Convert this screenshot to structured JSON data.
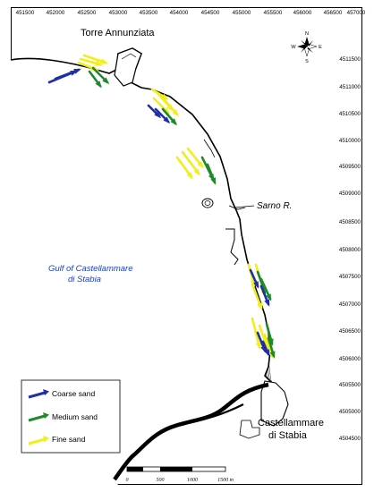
{
  "map": {
    "x_ticks": [
      "451500",
      "452000",
      "452500",
      "453000",
      "453500",
      "454000",
      "454500",
      "455000",
      "455500",
      "456000",
      "456500",
      "457000"
    ],
    "y_ticks": [
      "4511500",
      "4511000",
      "4510500",
      "4510000",
      "4509500",
      "4509000",
      "4508500",
      "4508000",
      "4507500",
      "4507000",
      "4506500",
      "4506000",
      "4505500",
      "4505000",
      "4504500"
    ],
    "places": {
      "torre": "Torre Annunziata",
      "sarno": "Sarno R.",
      "gulf_line1": "Gulf of Castellammare",
      "gulf_line2": "di Stabia",
      "castel_line1": "Castellammare",
      "castel_line2": "di Stabia"
    },
    "compass": {
      "n": "N",
      "s": "S",
      "e": "E",
      "w": "W"
    },
    "legend": [
      {
        "label": "Coarse sand",
        "color": "#1f2fa8",
        "icon": "arrow-icon"
      },
      {
        "label": "Medium sand",
        "color": "#1e8a2a",
        "icon": "arrow-icon"
      },
      {
        "label": "Fine sand",
        "color": "#f2ee1a",
        "icon": "arrow-icon"
      }
    ],
    "scale": {
      "labels": [
        "0",
        "500",
        "1000",
        "1500 m"
      ]
    }
  }
}
